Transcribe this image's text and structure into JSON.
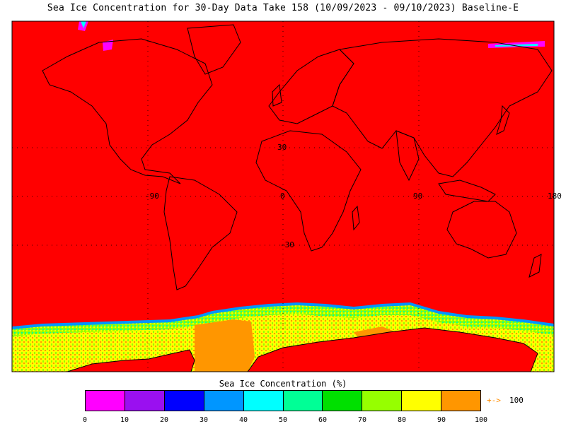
{
  "title": "Sea Ice Concentration for 30-Day Data Take 158 (10/09/2023 - 09/10/2023) Baseline-E",
  "map": {
    "ocean_color": "#ff0000",
    "land_outline_color": "#000000",
    "grid_color": "#000000",
    "lon_labels": [
      "-90",
      "0",
      "90",
      "180"
    ],
    "lat_labels": [
      "30",
      "-30"
    ]
  },
  "colorbar": {
    "title": "Sea Ice Concentration (%)",
    "colors": [
      "#ff00ff",
      "#9a10f0",
      "#0000ff",
      "#0096ff",
      "#00ffff",
      "#00ff96",
      "#00e000",
      "#96ff00",
      "#ffff00",
      "#ff9600"
    ],
    "tick_labels": [
      "0",
      "10",
      "20",
      "30",
      "40",
      "50",
      "60",
      "70",
      "80",
      "90",
      "100"
    ],
    "arrow_label": "+->",
    "arrow_value": "100",
    "arrow_color": "#ff8c00"
  }
}
